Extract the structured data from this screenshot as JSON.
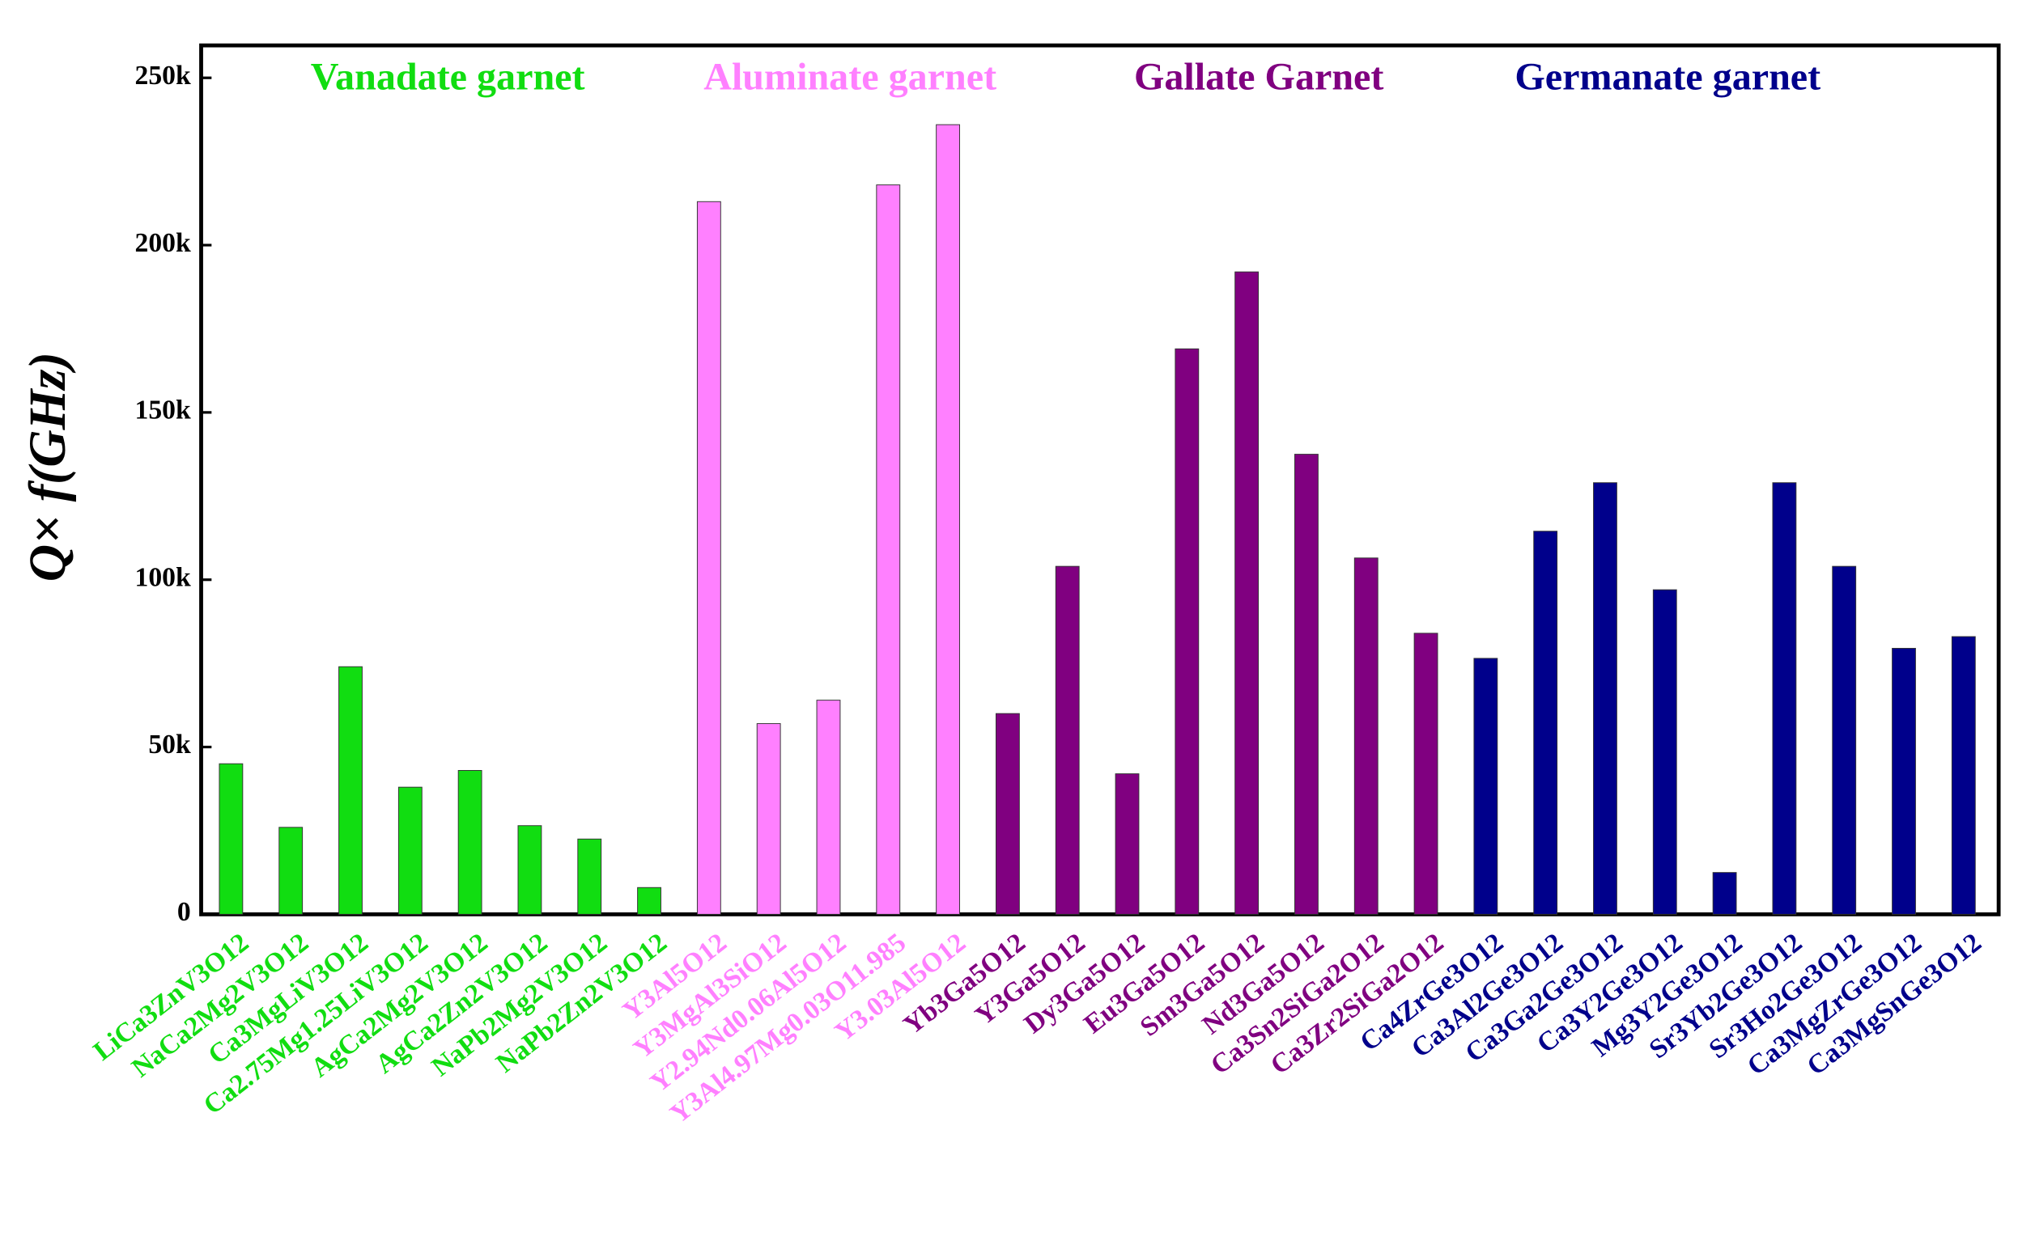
{
  "chart_data": {
    "type": "bar",
    "y_label": "Q× f(GHz)",
    "categories": [
      "LiCa3ZnV3O12",
      "NaCa2Mg2V3O12",
      "Ca3MgLiV3O12",
      "Ca2.75Mg1.25LiV3O12",
      "AgCa2Mg2V3O12",
      "AgCa2Zn2V3O12",
      "NaPb2Mg2V3O12",
      "NaPb2Zn2V3O12",
      "Y3Al5O12",
      "Y3MgAl3SiO12",
      "Y2.94Nd0.06Al5O12",
      "Y3Al4.97Mg0.03O11.985",
      "Y3.03Al5O12",
      "Yb3Ga5O12",
      "Y3Ga5O12",
      "Dy3Ga5O12",
      "Eu3Ga5O12",
      "Sm3Ga5O12",
      "Nd3Ga5O12",
      "Ca3Sn2SiGa2O12",
      "Ca3Zr2SiGa2O12",
      "Ca4ZrGe3O12",
      "Ca3Al2Ge3O12",
      "Ca3Ga2Ge3O12",
      "Ca3Y2Ge3O12",
      "Mg3Y2Ge3O12",
      "Sr3Yb2Ge3O12",
      "Sr3Ho2Ge3O12",
      "Ca3MgZrGe3O12",
      "Ca3MgSnGe3O12"
    ],
    "series": [
      {
        "name": "Vanadate garnet",
        "color": "#11dd11",
        "values": [
          45000,
          26000,
          74000,
          38000,
          43000,
          26500,
          22500,
          8000,
          null,
          null,
          null,
          null,
          null,
          null,
          null,
          null,
          null,
          null,
          null,
          null,
          null,
          null,
          null,
          null,
          null,
          null,
          null,
          null,
          null,
          null
        ]
      },
      {
        "name": "Aluminate garnet",
        "color": "#ff80ff",
        "values": [
          null,
          null,
          null,
          null,
          null,
          null,
          null,
          null,
          213000,
          57000,
          64000,
          218000,
          236000,
          null,
          null,
          null,
          null,
          null,
          null,
          null,
          null,
          null,
          null,
          null,
          null,
          null,
          null,
          null,
          null,
          null
        ]
      },
      {
        "name": "Gallate Garnet",
        "color": "#800080",
        "values": [
          null,
          null,
          null,
          null,
          null,
          null,
          null,
          null,
          null,
          null,
          null,
          null,
          null,
          60000,
          104000,
          42000,
          169000,
          192000,
          137500,
          106500,
          84000,
          null,
          null,
          null,
          null,
          null,
          null,
          null,
          null,
          null
        ]
      },
      {
        "name": "Germanate garnet",
        "color": "#00008b",
        "values": [
          null,
          null,
          null,
          null,
          null,
          null,
          null,
          null,
          null,
          null,
          null,
          null,
          null,
          null,
          null,
          null,
          null,
          null,
          null,
          null,
          null,
          76500,
          114500,
          129000,
          97000,
          12500,
          129000,
          104000,
          79500,
          83000
        ]
      }
    ],
    "ylim": [
      0,
      250000
    ],
    "yticks": [
      0,
      {
        "value": 50000,
        "label": "50k"
      },
      {
        "value": 100000,
        "label": "100k"
      },
      {
        "value": 150000,
        "label": "150k"
      },
      {
        "value": 200000,
        "label": "200k"
      },
      {
        "value": 250000,
        "label": "250k"
      }
    ]
  }
}
